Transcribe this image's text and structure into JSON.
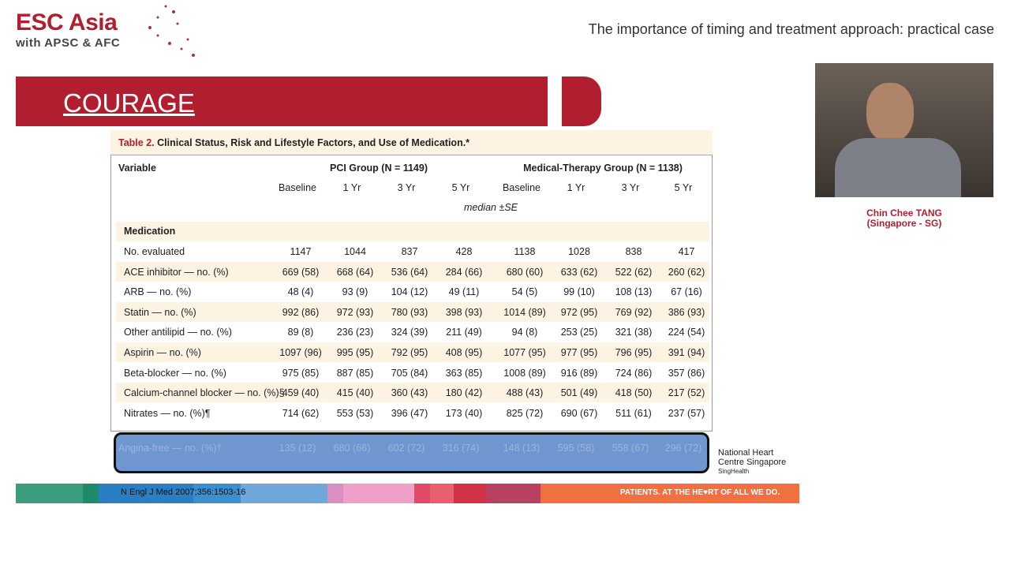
{
  "header": {
    "logo_line1": "ESC Asia",
    "logo_line2": "with APSC & AFC",
    "talk_title": "The importance of timing and treatment approach: practical case"
  },
  "slide": {
    "title": "COURAGE",
    "table_caption_label": "Table 2.",
    "table_caption": "Clinical Status, Risk and Lifestyle Factors, and Use of Medication.*",
    "variable_header": "Variable",
    "group1": "PCI Group (N = 1149)",
    "group2": "Medical-Therapy Group (N = 1138)",
    "timepoints": [
      "Baseline",
      "1 Yr",
      "3 Yr",
      "5 Yr",
      "Baseline",
      "1 Yr",
      "3 Yr",
      "5 Yr"
    ],
    "stat_note": "median ±SE",
    "section": "Medication",
    "rows": [
      {
        "label": "No. evaluated",
        "values": [
          "1147",
          "1044",
          "837",
          "428",
          "1138",
          "1028",
          "838",
          "417"
        ]
      },
      {
        "label": "ACE inhibitor — no. (%)",
        "values": [
          "669 (58)",
          "668 (64)",
          "536 (64)",
          "284 (66)",
          "680 (60)",
          "633 (62)",
          "522 (62)",
          "260 (62)"
        ]
      },
      {
        "label": "ARB — no. (%)",
        "values": [
          "48 (4)",
          "93 (9)",
          "104 (12)",
          "49 (11)",
          "54 (5)",
          "99 (10)",
          "108 (13)",
          "67 (16)"
        ]
      },
      {
        "label": "Statin — no. (%)",
        "values": [
          "992 (86)",
          "972 (93)",
          "780 (93)",
          "398 (93)",
          "1014 (89)",
          "972 (95)",
          "769 (92)",
          "386 (93)"
        ]
      },
      {
        "label": "Other antilipid — no. (%)",
        "values": [
          "89 (8)",
          "236 (23)",
          "324 (39)",
          "211 (49)",
          "94 (8)",
          "253 (25)",
          "321 (38)",
          "224 (54)"
        ]
      },
      {
        "label": "Aspirin — no. (%)",
        "values": [
          "1097 (96)",
          "995 (95)",
          "792 (95)",
          "408 (95)",
          "1077 (95)",
          "977 (95)",
          "796 (95)",
          "391 (94)"
        ]
      },
      {
        "label": "Beta-blocker — no. (%)",
        "values": [
          "975 (85)",
          "887 (85)",
          "705 (84)",
          "363 (85)",
          "1008 (89)",
          "916 (89)",
          "724 (86)",
          "357 (86)"
        ]
      },
      {
        "label": "Calcium-channel blocker — no. (%)§",
        "values": [
          "459 (40)",
          "415 (40)",
          "360 (43)",
          "180 (42)",
          "488 (43)",
          "501 (49)",
          "418 (50)",
          "217 (52)"
        ]
      },
      {
        "label": "Nitrates — no. (%)¶",
        "values": [
          "714 (62)",
          "553 (53)",
          "396 (47)",
          "173 (40)",
          "825 (72)",
          "690 (67)",
          "511 (61)",
          "237 (57)"
        ]
      }
    ],
    "highlight_row": {
      "label": "Angina-free — no. (%)†",
      "values": [
        "135 (12)",
        "680 (66)",
        "602 (72)",
        "316 (74)",
        "148 (13)",
        "595 (58)",
        "558 (67)",
        "296 (72)"
      ]
    },
    "citation": "N Engl J Med 2007;356:1503-16",
    "slogan": "PATIENTS. AT THE HE♥RT OF ALL WE DO.",
    "nhcs_line1": "National Heart",
    "nhcs_line2": "Centre Singapore",
    "nhcs_line3": "SingHealth",
    "strip_colors": [
      "#3a9e7e",
      "#1e8a6a",
      "#2a7fc4",
      "#3b8fd0",
      "#6fa6dc",
      "#d98fc0",
      "#f0a0c8",
      "#e04a68",
      "#e86070",
      "#d23248",
      "#b84060",
      "#f07040"
    ]
  },
  "speaker": {
    "name": "Chin Chee TANG",
    "location": "(Singapore - SG)"
  },
  "colors": {
    "brand_red": "#b01e2f",
    "highlight": "#6f96cf"
  }
}
